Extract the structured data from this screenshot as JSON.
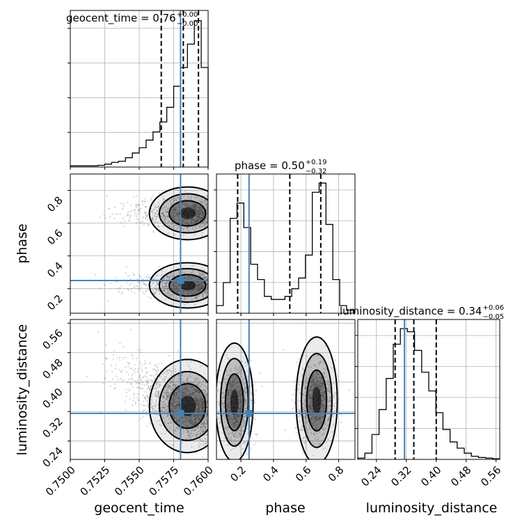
{
  "chart_data": {
    "type": "corner",
    "parameters": [
      "geocent_time",
      "phase",
      "luminosity_distance"
    ],
    "truths": {
      "geocent_time": 0.758,
      "phase": 0.25,
      "luminosity_distance": 0.315
    },
    "truth_color": "#4682b4",
    "titles": [
      {
        "param": "geocent_time",
        "text": "geocent_time = 0.76",
        "sup": "+0.00",
        "sub": "−0.00"
      },
      {
        "param": "phase",
        "text": "phase = 0.50",
        "sup": "+0.19",
        "sub": "−0.32"
      },
      {
        "param": "luminosity_distance",
        "text": "luminosity_distance = 0.34",
        "sup": "+0.06",
        "sub": "−0.05"
      }
    ],
    "ranges": {
      "geocent_time": [
        0.75,
        0.76
      ],
      "phase": [
        0.05,
        0.9
      ],
      "luminosity_distance": [
        0.19,
        0.57
      ]
    },
    "ticks": {
      "geocent_time": [
        "0.7500",
        "0.7525",
        "0.7550",
        "0.7575",
        "0.7600"
      ],
      "phase": [
        "0.2",
        "0.4",
        "0.6",
        "0.8"
      ],
      "luminosity_distance": [
        "0.24",
        "0.32",
        "0.40",
        "0.48",
        "0.56"
      ]
    },
    "quantiles": {
      "geocent_time": [
        0.7566,
        0.7582,
        0.7593
      ],
      "phase": [
        0.18,
        0.5,
        0.69
      ],
      "luminosity_distance": [
        0.29,
        0.34,
        0.4
      ]
    },
    "histograms": {
      "geocent_time": {
        "edges": [
          0.75,
          0.7505,
          0.751,
          0.7515,
          0.752,
          0.7525,
          0.753,
          0.7535,
          0.754,
          0.7545,
          0.755,
          0.7555,
          0.756,
          0.7565,
          0.757,
          0.7575,
          0.758,
          0.7585,
          0.759,
          0.7595,
          0.76
        ],
        "counts": [
          2,
          2,
          2,
          2,
          3,
          5,
          8,
          10,
          16,
          24,
          33,
          46,
          60,
          77,
          102,
          138,
          170,
          210,
          250,
          170
        ]
      },
      "phase": {
        "edges": [
          0.05,
          0.092,
          0.134,
          0.176,
          0.218,
          0.26,
          0.302,
          0.344,
          0.386,
          0.428,
          0.47,
          0.512,
          0.554,
          0.596,
          0.638,
          0.68,
          0.722,
          0.764,
          0.806,
          0.848,
          0.89
        ],
        "counts": [
          5,
          20,
          62,
          72,
          56,
          32,
          22,
          11,
          9,
          9,
          11,
          16,
          23,
          38,
          79,
          85,
          58,
          22,
          5,
          2
        ]
      },
      "luminosity_distance": {
        "edges": [
          0.19,
          0.209,
          0.228,
          0.247,
          0.266,
          0.285,
          0.304,
          0.323,
          0.342,
          0.361,
          0.38,
          0.399,
          0.418,
          0.437,
          0.456,
          0.475,
          0.494,
          0.513,
          0.532,
          0.551,
          0.57
        ],
        "counts": [
          2,
          10,
          40,
          80,
          130,
          185,
          210,
          205,
          175,
          140,
          110,
          75,
          48,
          28,
          18,
          10,
          5,
          3,
          2,
          1
        ]
      }
    },
    "grid": true,
    "xlabels": [
      "geocent_time",
      "phase",
      "luminosity_distance"
    ],
    "ylabels": [
      "",
      "phase",
      "luminosity_distance"
    ]
  }
}
